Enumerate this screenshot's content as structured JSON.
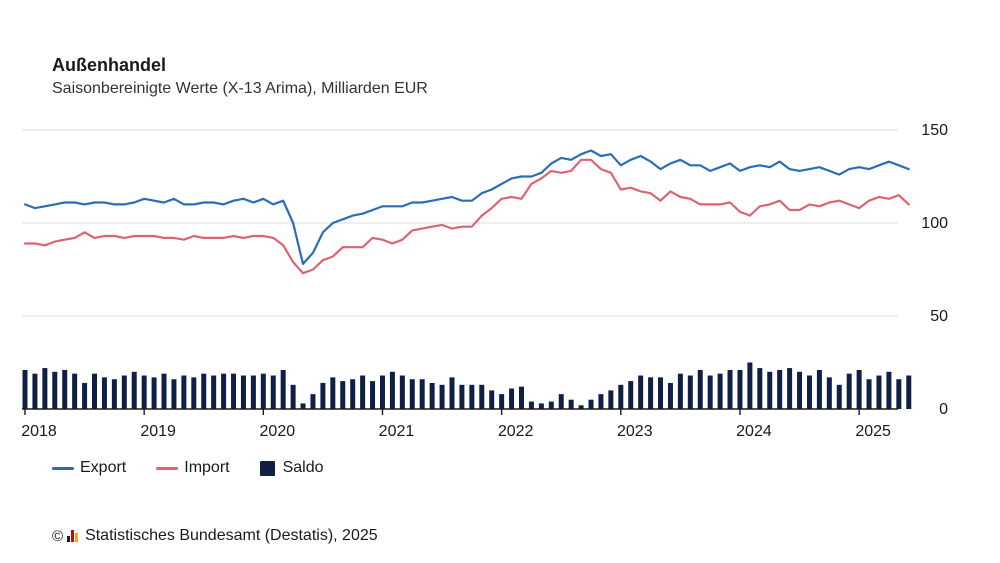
{
  "header": {
    "title": "Außenhandel",
    "subtitle": "Saisonbereinigte Werte (X-13 Arima), Milliarden EUR"
  },
  "legend": [
    {
      "name": "Export",
      "color": "#2b6cb8",
      "kind": "line"
    },
    {
      "name": "Import",
      "color": "#dc6374",
      "kind": "line"
    },
    {
      "name": "Saldo",
      "color": "#0f1f45",
      "kind": "bar"
    }
  ],
  "footer": {
    "source": "Statistisches Bundesamt (Destatis), 2025",
    "copyright_icon": "copyright-icon",
    "logo_icon": "destatis-logo-icon"
  },
  "chart_data": {
    "type": "line",
    "title": "Außenhandel",
    "subtitle": "Saisonbereinigte Werte (X-13 Arima), Milliarden EUR",
    "start_year": 2018,
    "start_month": 1,
    "year_labels": [
      "2018",
      "2019",
      "2020",
      "2021",
      "2022",
      "2023",
      "2024",
      "2025"
    ],
    "y_ticks": [
      0,
      50,
      100,
      150
    ],
    "ylim": [
      0,
      150
    ],
    "grid": true,
    "legend_position": "bottom-left",
    "series": [
      {
        "name": "Export",
        "type": "line",
        "color": "#2b6cb8",
        "values": [
          110,
          108,
          109,
          110,
          111,
          111,
          110,
          111,
          111,
          110,
          110,
          111,
          113,
          112,
          111,
          113,
          110,
          110,
          111,
          111,
          110,
          112,
          113,
          111,
          113,
          110,
          112,
          100,
          78,
          84,
          95,
          100,
          102,
          104,
          105,
          107,
          109,
          109,
          109,
          111,
          111,
          112,
          113,
          114,
          112,
          112,
          116,
          118,
          121,
          124,
          125,
          125,
          127,
          132,
          135,
          134,
          137,
          139,
          136,
          137,
          131,
          134,
          136,
          133,
          129,
          132,
          134,
          131,
          131,
          128,
          130,
          132,
          128,
          130,
          131,
          130,
          133,
          129,
          128,
          129,
          130,
          128,
          126,
          129,
          130,
          129,
          131,
          133,
          131,
          129
        ]
      },
      {
        "name": "Import",
        "type": "line",
        "color": "#dc6374",
        "values": [
          89,
          89,
          88,
          90,
          91,
          92,
          95,
          92,
          93,
          93,
          92,
          93,
          93,
          93,
          92,
          92,
          91,
          93,
          92,
          92,
          92,
          93,
          92,
          93,
          93,
          92,
          88,
          79,
          73,
          75,
          80,
          82,
          87,
          87,
          87,
          92,
          91,
          89,
          91,
          96,
          97,
          98,
          99,
          97,
          98,
          98,
          104,
          108,
          113,
          114,
          113,
          121,
          124,
          128,
          127,
          128,
          134,
          134,
          129,
          127,
          118,
          119,
          117,
          116,
          112,
          117,
          114,
          113,
          110,
          110,
          110,
          111,
          106,
          104,
          109,
          110,
          112,
          107,
          107,
          110,
          109,
          111,
          112,
          110,
          108,
          112,
          114,
          113,
          115,
          110
        ]
      },
      {
        "name": "Saldo",
        "type": "bar",
        "color": "#0f1f45",
        "values": [
          21,
          19,
          22,
          20,
          21,
          19,
          14,
          19,
          17,
          16,
          18,
          20,
          18,
          17,
          19,
          16,
          18,
          17,
          19,
          18,
          19,
          19,
          18,
          18,
          19,
          18,
          21,
          13,
          3,
          8,
          14,
          17,
          15,
          16,
          18,
          15,
          18,
          20,
          18,
          16,
          16,
          14,
          13,
          17,
          13,
          13,
          13,
          10,
          8,
          11,
          12,
          4,
          3,
          4,
          8,
          5,
          2,
          5,
          8,
          10,
          13,
          15,
          18,
          17,
          17,
          14,
          19,
          18,
          21,
          18,
          19,
          21,
          21,
          25,
          22,
          20,
          21,
          22,
          20,
          18,
          21,
          17,
          13,
          19,
          21,
          16,
          18,
          20,
          16,
          18
        ]
      }
    ]
  }
}
